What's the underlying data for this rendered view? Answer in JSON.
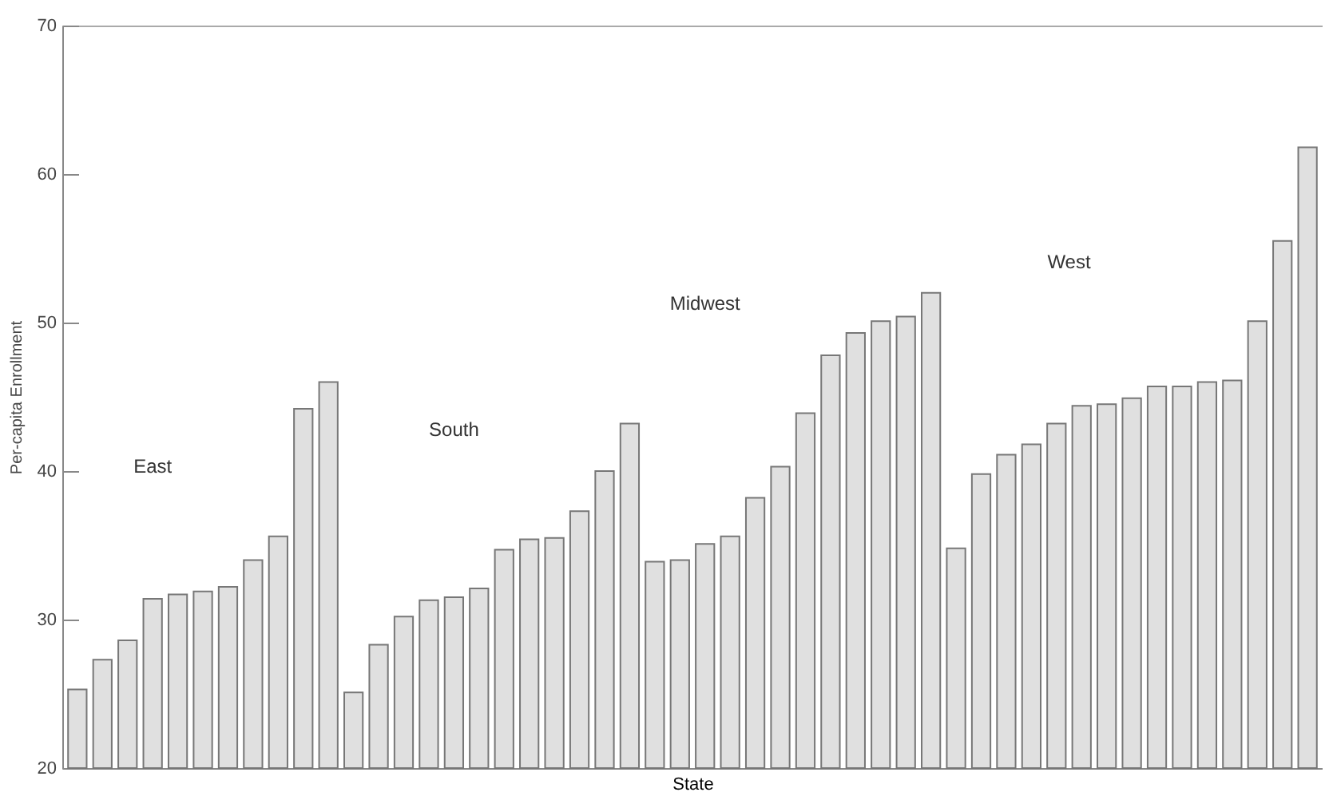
{
  "chart_data": {
    "type": "bar",
    "xlabel": "State",
    "ylabel": "Per-capita Enrollment",
    "categories": [
      null,
      null,
      null,
      null,
      null,
      null,
      null,
      null,
      null,
      null,
      null,
      null,
      null,
      null,
      null,
      null,
      null,
      null,
      null,
      null,
      null,
      null,
      null,
      null,
      null,
      null,
      null,
      null,
      null,
      null,
      null,
      null,
      null,
      null,
      null,
      null,
      null,
      null,
      null,
      null,
      null,
      null,
      null,
      null,
      null,
      null,
      null,
      null,
      null,
      null
    ],
    "values": [
      25.3,
      27.3,
      28.6,
      31.4,
      31.7,
      31.9,
      32.2,
      34.0,
      35.6,
      44.2,
      46.0,
      25.1,
      28.3,
      30.2,
      31.3,
      31.5,
      32.1,
      34.7,
      35.4,
      35.5,
      37.3,
      40.0,
      43.2,
      33.9,
      34.0,
      35.1,
      35.6,
      38.2,
      40.3,
      43.9,
      47.8,
      49.3,
      50.1,
      50.4,
      52.0,
      34.8,
      39.8,
      41.1,
      41.8,
      43.2,
      44.4,
      44.5,
      44.9,
      45.7,
      45.7,
      46.0,
      46.1,
      50.1,
      55.5,
      61.8
    ],
    "color": "#e0e0e0",
    "ylim": [
      20,
      70
    ],
    "yticks": [
      20,
      30,
      40,
      50,
      60,
      70
    ],
    "tick_labels": "y",
    "annotations": [
      "East",
      "South",
      "Midwest",
      "West"
    ]
  }
}
